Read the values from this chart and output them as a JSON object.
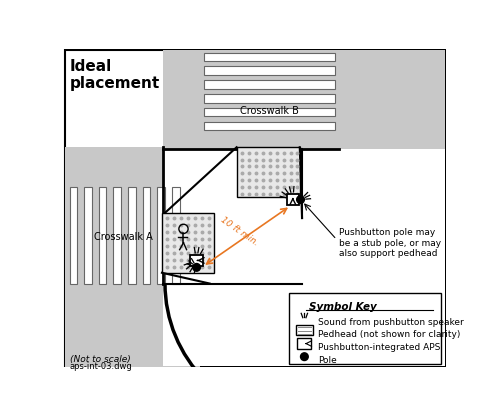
{
  "title": "Ideal\nplacement",
  "subtitle_1": "(Not to scale)",
  "subtitle_2": "aps-int-03.dwg",
  "crosswalk_a_label": "Crosswalk A",
  "crosswalk_b_label": "Crosswalk B",
  "annotation": "Pushbutton pole may\nbe a stub pole, or may\nalso support pedhead",
  "dimension_label": "10 ft min.",
  "symbol_key_title": "Symbol Key",
  "symbol_key_items": [
    "Sound from pushbutton speaker",
    "Pedhead (not shown for clarity)",
    "Pushbutton-integrated APS",
    "Pole"
  ],
  "bg_color": "#ffffff",
  "street_color": "#c8c8c8",
  "sidewalk_color": "#f0f0f0",
  "dimension_color": "#e87722",
  "stripe_fill": "#ffffff",
  "stripe_edge": "#666666",
  "dot_color": "#aaaaaa",
  "black": "#000000"
}
